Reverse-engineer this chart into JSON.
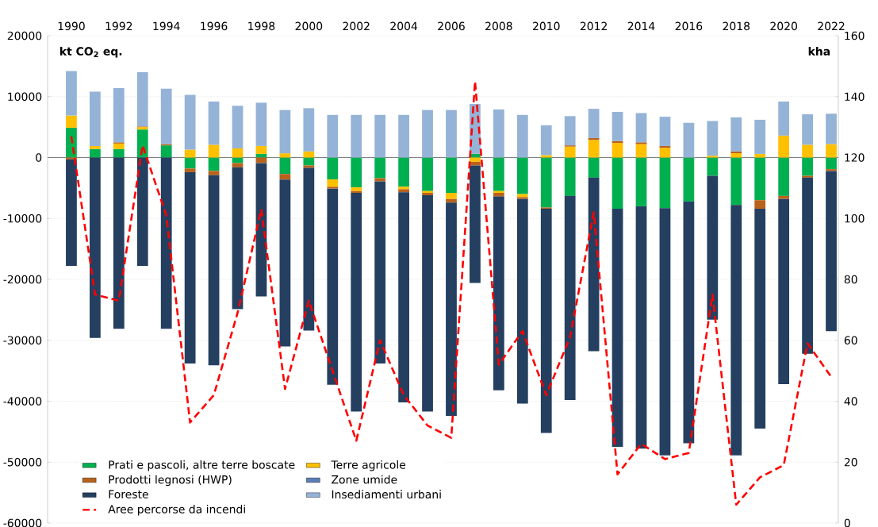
{
  "chart_data": {
    "type": "bar",
    "stacked": true,
    "categories": [
      "1990",
      null,
      "1992",
      null,
      "1994",
      null,
      "1996",
      null,
      "1998",
      null,
      "2000",
      null,
      "2002",
      null,
      "2004",
      null,
      "2006",
      null,
      "2008",
      null,
      "2010",
      null,
      "2012",
      null,
      "2014",
      null,
      "2016",
      null,
      "2018",
      null,
      "2020",
      null,
      "2022"
    ],
    "series": [
      {
        "name": "Prati e pascoli, altre terre boscate",
        "color": "#00b050",
        "values": [
          4900,
          1400,
          1400,
          4600,
          2000,
          -1800,
          -2200,
          -900,
          600,
          -2700,
          -1300,
          -3600,
          -4900,
          -3400,
          -4800,
          -5500,
          -5800,
          600,
          -5500,
          -6000,
          -8200,
          -6300,
          -3300,
          -8400,
          -8000,
          -8300,
          -7200,
          -3000,
          -7800,
          -7000,
          -6300,
          -3000,
          -1900
        ]
      },
      {
        "name": "Terre agricole",
        "color": "#ffc000",
        "values": [
          2000,
          500,
          900,
          400,
          0,
          1300,
          2100,
          1500,
          1300,
          700,
          1000,
          -1200,
          -600,
          0,
          -400,
          -300,
          -1000,
          -700,
          -300,
          -500,
          400,
          1800,
          2900,
          2400,
          2200,
          1600,
          0,
          300,
          700,
          600,
          3600,
          2100,
          2200
        ]
      },
      {
        "name": "Prodotti legnosi (HWP)",
        "color": "#b8621b",
        "values": [
          -300,
          0,
          200,
          100,
          200,
          -600,
          -700,
          -700,
          -900,
          -900,
          -400,
          -300,
          -300,
          -500,
          -500,
          -400,
          -600,
          -600,
          -600,
          -300,
          -200,
          200,
          300,
          300,
          300,
          300,
          0,
          0,
          300,
          -1400,
          -500,
          -300,
          -300
        ]
      },
      {
        "name": "Zone umide",
        "color": "#5a7eb6",
        "values": [
          0,
          0,
          0,
          0,
          0,
          0,
          0,
          0,
          0,
          0,
          0,
          0,
          0,
          0,
          0,
          0,
          0,
          0,
          0,
          0,
          0,
          0,
          0,
          0,
          0,
          0,
          0,
          0,
          0,
          0,
          0,
          0,
          0
        ]
      },
      {
        "name": "Foreste",
        "color": "#243f60",
        "values": [
          -17500,
          -29600,
          -28100,
          -17800,
          -28100,
          -31400,
          -31200,
          -23300,
          -21900,
          -27400,
          -26700,
          -32200,
          -35900,
          -29900,
          -34500,
          -35500,
          -35000,
          -19300,
          -31800,
          -33600,
          -36800,
          -33500,
          -28500,
          -39100,
          -39800,
          -40600,
          -39700,
          -23600,
          -41100,
          -36100,
          -30400,
          -28900,
          -26300
        ]
      },
      {
        "name": "Insediamenti urbani",
        "color": "#95b3d7",
        "values": [
          7300,
          8900,
          8900,
          8900,
          9100,
          9000,
          7100,
          7000,
          7100,
          7100,
          7100,
          7000,
          7000,
          7000,
          7000,
          7800,
          7800,
          8200,
          7900,
          7000,
          4900,
          4800,
          4800,
          4800,
          4800,
          4800,
          5700,
          5700,
          5600,
          5600,
          5600,
          5000,
          5000
        ]
      },
      {
        "name": "Aree percorse da incendi",
        "type": "line",
        "axis": "y2",
        "line_style": "dashed",
        "color": "#ff0000",
        "values": [
          127,
          75,
          73,
          124,
          101,
          33,
          42,
          69,
          103,
          44,
          73,
          50,
          27,
          60,
          42,
          32,
          28,
          145,
          52,
          63,
          42,
          61,
          102,
          16,
          26,
          21,
          23,
          75,
          6,
          15,
          19,
          59,
          48
        ]
      }
    ],
    "ylim": [
      -60000,
      20000
    ],
    "yticks": [
      -60000,
      -50000,
      -40000,
      -30000,
      -20000,
      -10000,
      0,
      10000,
      20000
    ],
    "y2lim": [
      0,
      160
    ],
    "y2ticks": [
      0,
      20,
      40,
      60,
      80,
      100,
      120,
      140,
      160
    ],
    "ylabel": "kt CO$_{2}$ eq.",
    "y2label": "kha",
    "grid": "y",
    "legend": "bottom left"
  }
}
